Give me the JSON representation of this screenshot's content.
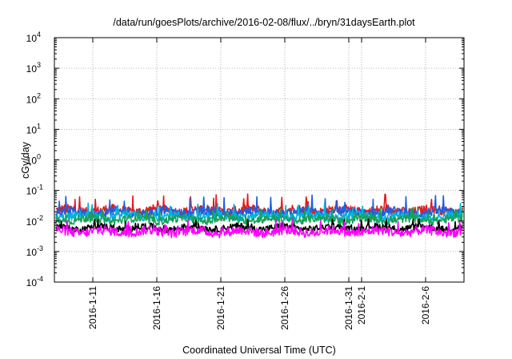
{
  "chart_data": {
    "type": "line",
    "title": "/data/run/goesPlots/archive/2016-02-08/flux/../bryn/31daysEarth.plot",
    "xlabel": "Coordinated Universal Time (UTC)",
    "ylabel": "cGy/day",
    "yscale": "log",
    "ylim": [
      0.0001,
      10000
    ],
    "xlim": [
      "2016-01-08",
      "2016-02-09"
    ],
    "grid": true,
    "ytick_labels": [
      {
        "base": "10",
        "exp": "-4"
      },
      {
        "base": "10",
        "exp": "-3"
      },
      {
        "base": "10",
        "exp": "-2"
      },
      {
        "base": "10",
        "exp": "-1"
      },
      {
        "base": "10",
        "exp": "0"
      },
      {
        "base": "10",
        "exp": "1"
      },
      {
        "base": "10",
        "exp": "2"
      },
      {
        "base": "10",
        "exp": "3"
      },
      {
        "base": "10",
        "exp": "4"
      }
    ],
    "xticks": [
      "2016-1-11",
      "2016-1-16",
      "2016-1-21",
      "2016-1-26",
      "2016-1-31",
      "2016-2-1",
      "2016-2-6"
    ],
    "series": [
      {
        "color": "#e41a1c",
        "base": 0.022,
        "spread": 0.35,
        "spike": 0.06
      },
      {
        "color": "#1f5fe0",
        "base": 0.019,
        "spread": 0.35,
        "spike": 0.055
      },
      {
        "color": "#00b4d8",
        "base": 0.014,
        "spread": 0.3,
        "spike": 0.03
      },
      {
        "color": "#18a058",
        "base": 0.011,
        "spread": 0.3,
        "spike": 0.02
      },
      {
        "color": "#000000",
        "base": 0.006,
        "spread": 0.25,
        "spike": 0.009
      },
      {
        "color": "#ff00ff",
        "base": 0.0045,
        "spread": 0.35,
        "spike": 0.009
      }
    ]
  }
}
